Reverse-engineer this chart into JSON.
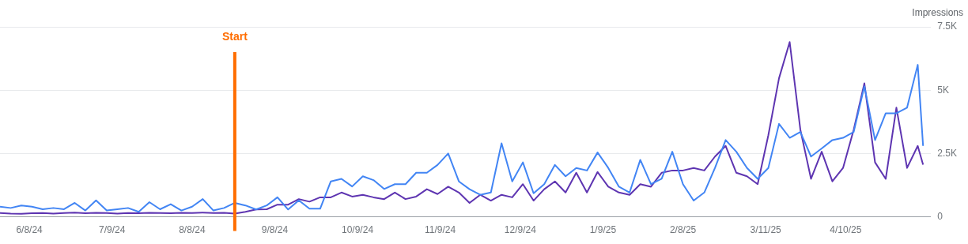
{
  "chart_data": {
    "type": "line",
    "ylabel": "Impressions",
    "x": [
      "2024-05-28",
      "2024-06-01",
      "2024-06-05",
      "2024-06-09",
      "2024-06-13",
      "2024-06-17",
      "2024-06-21",
      "2024-06-25",
      "2024-06-29",
      "2024-07-03",
      "2024-07-07",
      "2024-07-11",
      "2024-07-15",
      "2024-07-19",
      "2024-07-23",
      "2024-07-27",
      "2024-07-31",
      "2024-08-04",
      "2024-08-08",
      "2024-08-12",
      "2024-08-16",
      "2024-08-20",
      "2024-08-24",
      "2024-08-28",
      "2024-09-01",
      "2024-09-05",
      "2024-09-09",
      "2024-09-13",
      "2024-09-17",
      "2024-09-21",
      "2024-09-25",
      "2024-09-29",
      "2024-10-03",
      "2024-10-07",
      "2024-10-11",
      "2024-10-15",
      "2024-10-19",
      "2024-10-23",
      "2024-10-27",
      "2024-10-31",
      "2024-11-04",
      "2024-11-08",
      "2024-11-12",
      "2024-11-16",
      "2024-11-20",
      "2024-11-24",
      "2024-11-28",
      "2024-12-02",
      "2024-12-06",
      "2024-12-10",
      "2024-12-14",
      "2024-12-18",
      "2024-12-22",
      "2024-12-26",
      "2024-12-30",
      "2025-01-03",
      "2025-01-07",
      "2025-01-11",
      "2025-01-15",
      "2025-01-19",
      "2025-01-23",
      "2025-01-27",
      "2025-01-31",
      "2025-02-04",
      "2025-02-08",
      "2025-02-12",
      "2025-02-16",
      "2025-02-20",
      "2025-02-24",
      "2025-02-28",
      "2025-03-04",
      "2025-03-08",
      "2025-03-12",
      "2025-03-16",
      "2025-03-20",
      "2025-03-24",
      "2025-03-28",
      "2025-04-01",
      "2025-04-05",
      "2025-04-09",
      "2025-04-13",
      "2025-04-17",
      "2025-04-21",
      "2025-04-25",
      "2025-04-29",
      "2025-05-03",
      "2025-05-07",
      "2025-05-09"
    ],
    "series": [
      {
        "color": "#4285f4",
        "values": [
          400,
          350,
          450,
          400,
          300,
          350,
          300,
          550,
          250,
          650,
          250,
          300,
          350,
          200,
          580,
          300,
          500,
          250,
          400,
          700,
          250,
          350,
          550,
          450,
          290,
          450,
          770,
          290,
          650,
          320,
          320,
          1400,
          1500,
          1200,
          1600,
          1450,
          1100,
          1290,
          1290,
          1740,
          1740,
          2050,
          2500,
          1400,
          1090,
          870,
          960,
          2900,
          1400,
          2150,
          930,
          1290,
          2050,
          1600,
          1930,
          1830,
          2540,
          1930,
          1190,
          960,
          2250,
          1290,
          1500,
          2570,
          1290,
          640,
          960,
          1930,
          3030,
          2570,
          1930,
          1500,
          1930,
          3670,
          3120,
          3350,
          2380,
          2700,
          3030,
          3120,
          3350,
          5150,
          3030,
          4090,
          4090,
          4310,
          6000,
          2800
        ]
      },
      {
        "color": "#5e35b1",
        "values": [
          150,
          130,
          120,
          140,
          150,
          130,
          150,
          170,
          140,
          160,
          150,
          130,
          150,
          140,
          160,
          150,
          140,
          160,
          150,
          170,
          150,
          160,
          130,
          200,
          290,
          300,
          480,
          480,
          700,
          600,
          770,
          770,
          960,
          800,
          870,
          770,
          700,
          960,
          700,
          800,
          1090,
          900,
          1190,
          960,
          550,
          870,
          640,
          870,
          770,
          1290,
          640,
          1090,
          1400,
          960,
          1740,
          960,
          1770,
          1190,
          960,
          870,
          1290,
          1190,
          1740,
          1830,
          1830,
          1930,
          1830,
          2380,
          2800,
          1740,
          1600,
          1290,
          3220,
          5470,
          6900,
          3440,
          1500,
          2570,
          1400,
          1930,
          3440,
          5270,
          2150,
          1500,
          4310,
          1930,
          2800,
          2060
        ]
      }
    ],
    "xlim": [
      "2024-05-28",
      "2025-05-12"
    ],
    "xticks": [
      {
        "value": "2024-06-08",
        "label": "6/8/24"
      },
      {
        "value": "2024-07-09",
        "label": "7/9/24"
      },
      {
        "value": "2024-08-08",
        "label": "8/8/24"
      },
      {
        "value": "2024-09-08",
        "label": "9/8/24"
      },
      {
        "value": "2024-10-09",
        "label": "10/9/24"
      },
      {
        "value": "2024-11-09",
        "label": "11/9/24"
      },
      {
        "value": "2024-12-09",
        "label": "12/9/24"
      },
      {
        "value": "2025-01-09",
        "label": "1/9/25"
      },
      {
        "value": "2025-02-08",
        "label": "2/8/25"
      },
      {
        "value": "2025-03-11",
        "label": "3/11/25"
      },
      {
        "value": "2025-04-10",
        "label": "4/10/25"
      }
    ],
    "ylim": [
      0,
      7500
    ],
    "yticks": [
      0,
      {
        "value": 2500,
        "label": "2.5K"
      },
      {
        "value": 5000,
        "label": "5K"
      },
      {
        "value": 7500,
        "label": "7.5K"
      }
    ],
    "ref_lines": [
      {
        "axis": "x",
        "value": "2024-08-24",
        "label": "Start",
        "color": "#ff6d00"
      }
    ],
    "grid": "y",
    "legend": false,
    "marker": "none",
    "line_style": "solid"
  }
}
